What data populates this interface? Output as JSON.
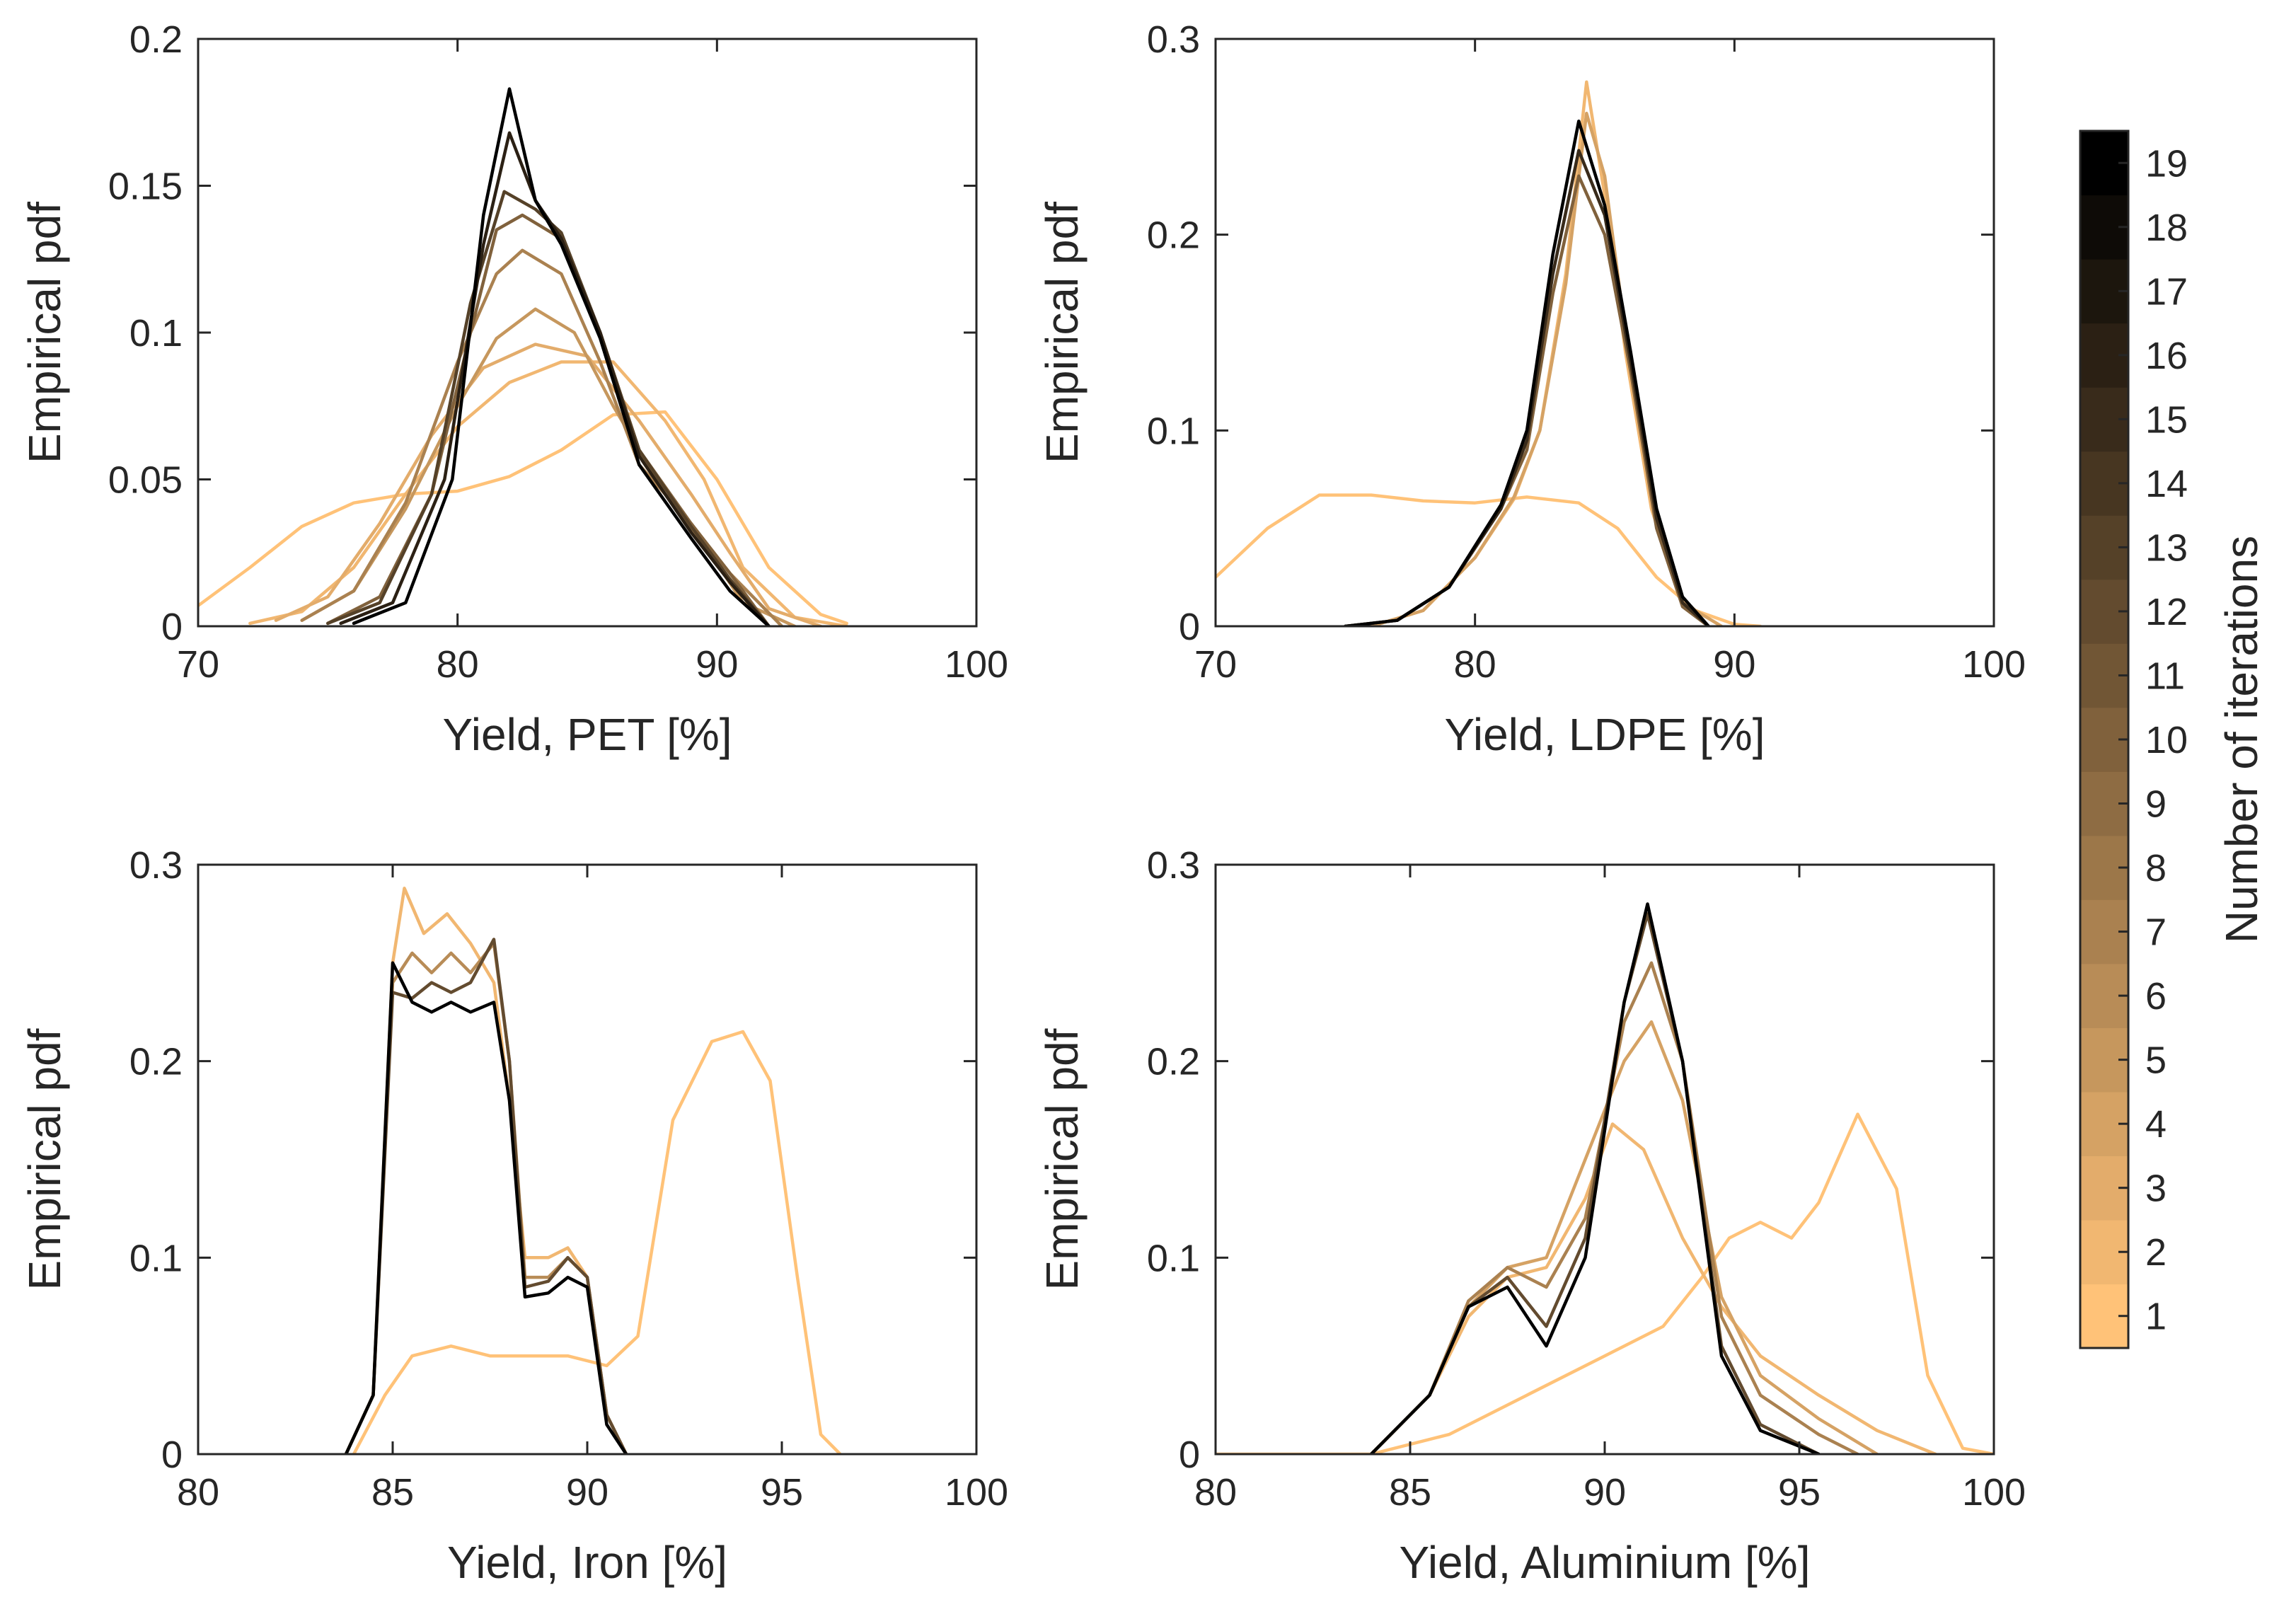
{
  "chart_data": [
    {
      "type": "line",
      "id": "pet",
      "xlabel": "Yield, PET [%]",
      "ylabel": "Empirical pdf",
      "xlim": [
        70,
        100
      ],
      "ylim": [
        0,
        0.2
      ],
      "xticks": [
        70,
        80,
        90,
        100
      ],
      "yticks": [
        0,
        0.05,
        0.1,
        0.15,
        0.2
      ],
      "ytick_labels": [
        "0",
        "0.05",
        "0.1",
        "0.15",
        "0.2"
      ],
      "series": [
        {
          "name": "1",
          "x": [
            70,
            72,
            74,
            76,
            78,
            80,
            82,
            84,
            86,
            88,
            90,
            92,
            94,
            95
          ],
          "y": [
            0.007,
            0.02,
            0.034,
            0.042,
            0.045,
            0.046,
            0.051,
            0.06,
            0.072,
            0.073,
            0.05,
            0.02,
            0.004,
            0.001
          ]
        },
        {
          "name": "2",
          "x": [
            72,
            74,
            76,
            78,
            80,
            82,
            84,
            86,
            88,
            89.5,
            91,
            93,
            95
          ],
          "y": [
            0.001,
            0.005,
            0.02,
            0.045,
            0.068,
            0.083,
            0.09,
            0.09,
            0.07,
            0.05,
            0.02,
            0.003,
            0
          ]
        },
        {
          "name": "3",
          "x": [
            73,
            75,
            77,
            79,
            81,
            83,
            85,
            87,
            89,
            90.5,
            92,
            94
          ],
          "y": [
            0.002,
            0.01,
            0.035,
            0.065,
            0.088,
            0.096,
            0.092,
            0.07,
            0.045,
            0.025,
            0.006,
            0
          ]
        },
        {
          "name": "5",
          "x": [
            74,
            76,
            78,
            80,
            81.5,
            83,
            84.5,
            86,
            88,
            89.5,
            91,
            93
          ],
          "y": [
            0.002,
            0.012,
            0.04,
            0.075,
            0.098,
            0.108,
            0.1,
            0.075,
            0.045,
            0.028,
            0.008,
            0
          ]
        },
        {
          "name": "7",
          "x": [
            74,
            76,
            78,
            80,
            81.5,
            82.5,
            84,
            85.5,
            87,
            89,
            90.5,
            92.5
          ],
          "y": [
            0.002,
            0.012,
            0.042,
            0.09,
            0.12,
            0.128,
            0.12,
            0.09,
            0.055,
            0.035,
            0.018,
            0
          ]
        },
        {
          "name": "10",
          "x": [
            75,
            77,
            79,
            80.5,
            81.5,
            82.5,
            84,
            85.5,
            87,
            89,
            90.5,
            92
          ],
          "y": [
            0.001,
            0.01,
            0.045,
            0.1,
            0.135,
            0.14,
            0.132,
            0.1,
            0.06,
            0.035,
            0.018,
            0
          ]
        },
        {
          "name": "13",
          "x": [
            75,
            77,
            79,
            80.5,
            81.8,
            83,
            84,
            85.5,
            87,
            89,
            90.5,
            92
          ],
          "y": [
            0.001,
            0.008,
            0.045,
            0.11,
            0.148,
            0.142,
            0.134,
            0.1,
            0.06,
            0.034,
            0.016,
            0
          ]
        },
        {
          "name": "16",
          "x": [
            75.5,
            77.5,
            79.5,
            81,
            82,
            83,
            84,
            85.5,
            87,
            89,
            90.5,
            92
          ],
          "y": [
            0.001,
            0.008,
            0.05,
            0.13,
            0.168,
            0.145,
            0.132,
            0.1,
            0.058,
            0.032,
            0.015,
            0
          ]
        },
        {
          "name": "19",
          "x": [
            76,
            78,
            79.8,
            81,
            82,
            83,
            84,
            85.5,
            87,
            89,
            90.5,
            92
          ],
          "y": [
            0.001,
            0.008,
            0.05,
            0.14,
            0.183,
            0.145,
            0.13,
            0.098,
            0.055,
            0.03,
            0.012,
            0
          ]
        }
      ]
    },
    {
      "type": "line",
      "id": "ldpe",
      "xlabel": "Yield, LDPE [%]",
      "ylabel": "Empirical pdf",
      "xlim": [
        70,
        100
      ],
      "ylim": [
        0,
        0.3
      ],
      "xticks": [
        70,
        80,
        90,
        100
      ],
      "yticks": [
        0,
        0.1,
        0.2,
        0.3
      ],
      "ytick_labels": [
        "0",
        "0.1",
        "0.2",
        "0.3"
      ],
      "series": [
        {
          "name": "1",
          "x": [
            70,
            72,
            74,
            76,
            78,
            80,
            82,
            84,
            85.5,
            87,
            88.5,
            90,
            91
          ],
          "y": [
            0.025,
            0.05,
            0.067,
            0.067,
            0.064,
            0.063,
            0.066,
            0.063,
            0.05,
            0.025,
            0.008,
            0.001,
            0
          ]
        },
        {
          "name": "2",
          "x": [
            76,
            78,
            80,
            81.5,
            82.5,
            83.5,
            84.3,
            85,
            85.8,
            86.8,
            88,
            89.5
          ],
          "y": [
            0,
            0.008,
            0.035,
            0.065,
            0.1,
            0.18,
            0.278,
            0.22,
            0.14,
            0.06,
            0.012,
            0
          ]
        },
        {
          "name": "4",
          "x": [
            76,
            78,
            80,
            81.5,
            82.5,
            83.5,
            84.3,
            85,
            85.8,
            86.8,
            88,
            89.5
          ],
          "y": [
            0,
            0.008,
            0.035,
            0.066,
            0.1,
            0.175,
            0.262,
            0.23,
            0.15,
            0.065,
            0.012,
            0
          ]
        },
        {
          "name": "10",
          "x": [
            75,
            77,
            79,
            81,
            82,
            83,
            84,
            85,
            86,
            87,
            88,
            89
          ],
          "y": [
            0,
            0.003,
            0.02,
            0.06,
            0.09,
            0.17,
            0.23,
            0.2,
            0.13,
            0.05,
            0.01,
            0
          ]
        },
        {
          "name": "15",
          "x": [
            75,
            77,
            79,
            81,
            82,
            83,
            84,
            85,
            86,
            87,
            88,
            89
          ],
          "y": [
            0,
            0.003,
            0.02,
            0.06,
            0.095,
            0.18,
            0.243,
            0.21,
            0.135,
            0.055,
            0.012,
            0
          ]
        },
        {
          "name": "19",
          "x": [
            75,
            77,
            79,
            81,
            82,
            83,
            84,
            85,
            86,
            87,
            88,
            89
          ],
          "y": [
            0,
            0.003,
            0.02,
            0.062,
            0.1,
            0.19,
            0.258,
            0.215,
            0.14,
            0.06,
            0.015,
            0
          ]
        }
      ]
    },
    {
      "type": "line",
      "id": "iron",
      "xlabel": "Yield, Iron [%]",
      "ylabel": "Empirical pdf",
      "xlim": [
        80,
        100
      ],
      "ylim": [
        0,
        0.3
      ],
      "xticks": [
        80,
        85,
        90,
        95,
        100
      ],
      "yticks": [
        0,
        0.1,
        0.2,
        0.3
      ],
      "ytick_labels": [
        "0",
        "0.1",
        "0.2",
        "0.3"
      ],
      "series": [
        {
          "name": "1",
          "x": [
            84,
            84.8,
            85.5,
            86.5,
            87.5,
            88.5,
            89.5,
            90.5,
            91.3,
            92.2,
            93.2,
            94,
            94.7,
            95.4,
            96,
            96.5
          ],
          "y": [
            0,
            0.03,
            0.05,
            0.055,
            0.05,
            0.05,
            0.05,
            0.045,
            0.06,
            0.17,
            0.21,
            0.215,
            0.19,
            0.09,
            0.01,
            0
          ]
        },
        {
          "name": "2",
          "x": [
            83.8,
            84.5,
            85,
            85.3,
            85.8,
            86.4,
            87,
            87.6,
            88,
            88.4,
            89,
            89.5,
            90,
            90.5,
            91
          ],
          "y": [
            0,
            0.03,
            0.25,
            0.288,
            0.265,
            0.275,
            0.26,
            0.24,
            0.18,
            0.1,
            0.1,
            0.105,
            0.09,
            0.02,
            0
          ]
        },
        {
          "name": "6",
          "x": [
            83.8,
            84.5,
            85,
            85.5,
            86,
            86.5,
            87,
            87.6,
            88,
            88.4,
            89,
            89.5,
            90,
            90.5,
            91
          ],
          "y": [
            0,
            0.03,
            0.24,
            0.255,
            0.245,
            0.255,
            0.245,
            0.26,
            0.2,
            0.09,
            0.09,
            0.1,
            0.09,
            0.02,
            0
          ]
        },
        {
          "name": "12",
          "x": [
            83.8,
            84.5,
            85,
            85.5,
            86,
            86.5,
            87,
            87.6,
            88,
            88.4,
            89,
            89.5,
            90,
            90.5,
            91
          ],
          "y": [
            0,
            0.03,
            0.235,
            0.232,
            0.24,
            0.235,
            0.24,
            0.262,
            0.2,
            0.085,
            0.088,
            0.1,
            0.09,
            0.02,
            0
          ]
        },
        {
          "name": "19",
          "x": [
            83.8,
            84.5,
            85,
            85.5,
            86,
            86.5,
            87,
            87.6,
            88,
            88.4,
            89,
            89.5,
            90,
            90.5,
            91
          ],
          "y": [
            0,
            0.03,
            0.25,
            0.23,
            0.225,
            0.23,
            0.225,
            0.23,
            0.18,
            0.08,
            0.082,
            0.09,
            0.085,
            0.015,
            0
          ]
        }
      ]
    },
    {
      "type": "line",
      "id": "aluminium",
      "xlabel": "Yield, Aluminium [%]",
      "ylabel": "Empirical pdf",
      "xlim": [
        80,
        100
      ],
      "ylim": [
        0,
        0.3
      ],
      "xticks": [
        80,
        85,
        90,
        95,
        100
      ],
      "yticks": [
        0,
        0.1,
        0.2,
        0.3
      ],
      "ytick_labels": [
        "0",
        "0.1",
        "0.2",
        "0.3"
      ],
      "series": [
        {
          "name": "1",
          "x": [
            80,
            84,
            86,
            88,
            90,
            91.5,
            92.5,
            93.2,
            94,
            94.8,
            95.5,
            96.5,
            97.5,
            98.3,
            99.2,
            100
          ],
          "y": [
            0,
            0,
            0.01,
            0.03,
            0.05,
            0.065,
            0.09,
            0.11,
            0.118,
            0.11,
            0.128,
            0.173,
            0.135,
            0.04,
            0.003,
            0
          ]
        },
        {
          "name": "2",
          "x": [
            84,
            85.5,
            86.5,
            87.5,
            88.5,
            89.5,
            90.2,
            91,
            92,
            93,
            94,
            95.5,
            97,
            98.5
          ],
          "y": [
            0,
            0.03,
            0.07,
            0.09,
            0.095,
            0.13,
            0.168,
            0.155,
            0.11,
            0.075,
            0.05,
            0.03,
            0.012,
            0
          ]
        },
        {
          "name": "4",
          "x": [
            84,
            85.5,
            86.5,
            87.5,
            88.5,
            89.5,
            90.5,
            91.2,
            92,
            93,
            94,
            95.5,
            97
          ],
          "y": [
            0,
            0.03,
            0.075,
            0.095,
            0.1,
            0.15,
            0.2,
            0.22,
            0.18,
            0.08,
            0.04,
            0.018,
            0
          ]
        },
        {
          "name": "7",
          "x": [
            84,
            85.5,
            86.5,
            87.5,
            88.5,
            89.5,
            90.5,
            91.2,
            92,
            93,
            94,
            95.5,
            96.5
          ],
          "y": [
            0,
            0.03,
            0.078,
            0.095,
            0.085,
            0.12,
            0.22,
            0.25,
            0.2,
            0.07,
            0.03,
            0.01,
            0
          ]
        },
        {
          "name": "12",
          "x": [
            84,
            85.5,
            86.5,
            87.5,
            88.5,
            89.5,
            90.5,
            91.1,
            92,
            93,
            94,
            95.5
          ],
          "y": [
            0,
            0.03,
            0.075,
            0.09,
            0.065,
            0.11,
            0.23,
            0.275,
            0.2,
            0.055,
            0.015,
            0
          ]
        },
        {
          "name": "19",
          "x": [
            84,
            85.5,
            86.5,
            87.5,
            88.5,
            89.5,
            90.5,
            91.1,
            92,
            93,
            94,
            95.5
          ],
          "y": [
            0,
            0.03,
            0.075,
            0.085,
            0.055,
            0.1,
            0.23,
            0.28,
            0.2,
            0.05,
            0.012,
            0
          ]
        }
      ]
    }
  ],
  "colorbar": {
    "label": "Number of iterations",
    "ticks": [
      1,
      2,
      3,
      4,
      5,
      6,
      7,
      8,
      9,
      10,
      11,
      12,
      13,
      14,
      15,
      16,
      17,
      18,
      19
    ],
    "levels": 19,
    "color_low": "#ffc278",
    "color_high": "#000000"
  }
}
